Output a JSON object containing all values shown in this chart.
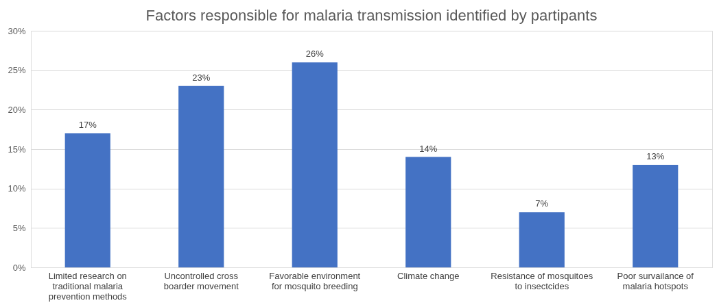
{
  "chart_data": {
    "type": "bar",
    "title": "Factors responsible for malaria transmission identified by partipants",
    "categories": [
      "Limited research on traditional malaria prevention methods",
      "Uncontrolled cross boarder movement",
      "Favorable environment for mosquito breeding",
      "Climate change",
      "Resistance of mosquitoes to insectcides",
      "Poor survailance of malaria hotspots"
    ],
    "values": [
      17,
      23,
      26,
      14,
      7,
      13
    ],
    "value_labels": [
      "17%",
      "23%",
      "26%",
      "14%",
      "7%",
      "13%"
    ],
    "color": "#4472c4",
    "ylim": [
      0,
      30
    ],
    "yticks": [
      {
        "value": 0,
        "label": "0%"
      },
      {
        "value": 5,
        "label": "5%"
      },
      {
        "value": 10,
        "label": "10%"
      },
      {
        "value": 15,
        "label": "15%"
      },
      {
        "value": 20,
        "label": "20%"
      },
      {
        "value": 25,
        "label": "25%"
      },
      {
        "value": 30,
        "label": "30%"
      }
    ],
    "grid": "y"
  }
}
